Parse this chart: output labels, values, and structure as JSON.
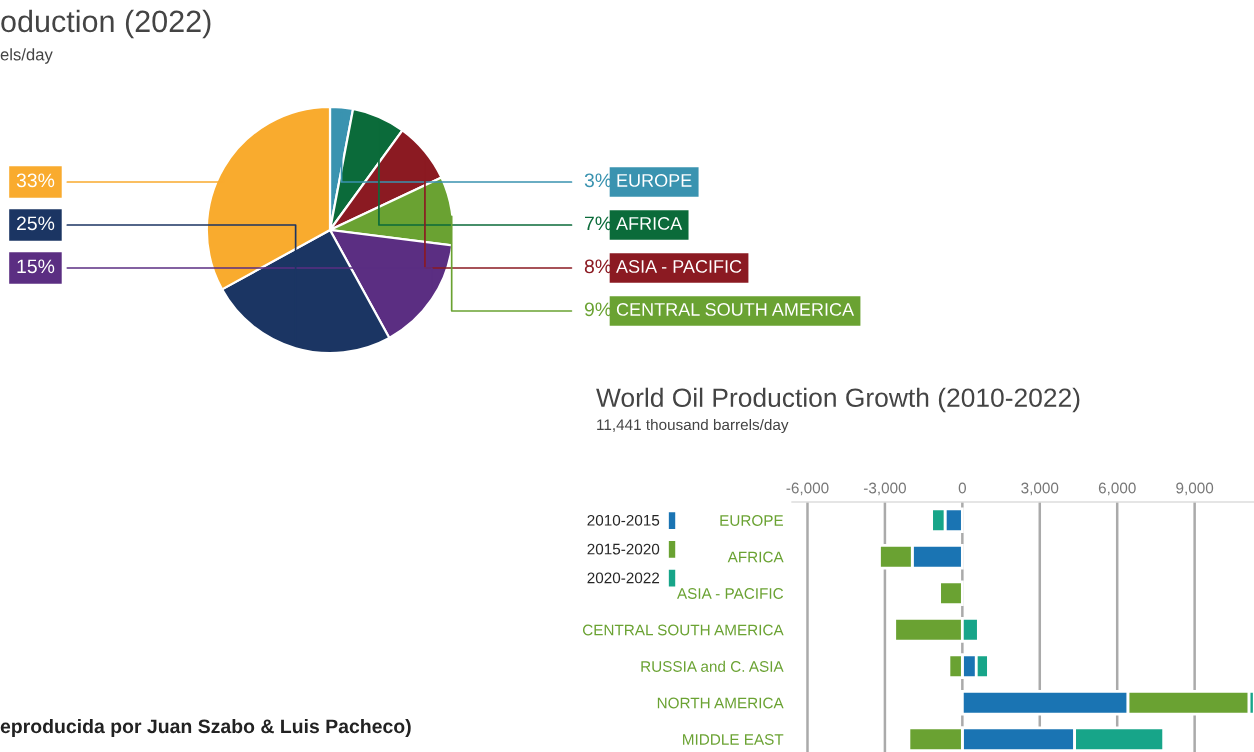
{
  "chart_data": [
    {
      "type": "pie",
      "title": "oduction (2022)",
      "subtitle": "els/day",
      "categories": [
        "EUROPE",
        "AFRICA",
        "ASIA - PACIFIC",
        "CENTRAL SOUTH AMERICA",
        null,
        null,
        null
      ],
      "values": [
        3,
        7,
        8,
        9,
        15,
        25,
        33
      ],
      "colors": [
        "#3a93b0",
        "#0b6b3a",
        "#8b1a22",
        "#6aa232",
        "#5b2e82",
        "#1b3563",
        "#f9ab2e"
      ],
      "value_labels": [
        "3%",
        "7%",
        "8%",
        "9%",
        "15%",
        "25%",
        "33%"
      ],
      "annotations": [
        "eproducida por Juan Szabo & Luis Pacheco)"
      ]
    },
    {
      "type": "bar",
      "orientation": "horizontal",
      "stacked": true,
      "title": "World Oil Production Growth (2010-2022)",
      "subtitle": "11,441 thousand barrels/day",
      "categories": [
        "EUROPE",
        "AFRICA",
        "ASIA - PACIFIC",
        "CENTRAL SOUTH AMERICA",
        "RUSSIA and C. ASIA",
        "NORTH AMERICA",
        "MIDDLE EAST"
      ],
      "series": [
        {
          "name": "2010-2015",
          "color": "#1a74b3",
          "values": [
            -670,
            -1940,
            null,
            null,
            540,
            6420,
            4350
          ]
        },
        {
          "name": "2015-2020",
          "color": "#6aa232",
          "values": [
            null,
            -1270,
            -880,
            -2620,
            -520,
            4690,
            -2070
          ]
        },
        {
          "name": "2020-2022",
          "color": "#17a589",
          "values": [
            -520,
            null,
            -100,
            620,
            470,
            200,
            3450
          ]
        }
      ],
      "xlim": [
        -6600,
        11300
      ],
      "xticks": [
        {
          "value": -6000,
          "label": "-6,000"
        },
        {
          "value": -3000,
          "label": "-3,000"
        },
        0,
        {
          "value": 3000,
          "label": "3,000"
        },
        {
          "value": 6000,
          "label": "6,000"
        },
        {
          "value": 9000,
          "label": "9,000"
        }
      ],
      "grid": "x",
      "legend": "left"
    }
  ]
}
